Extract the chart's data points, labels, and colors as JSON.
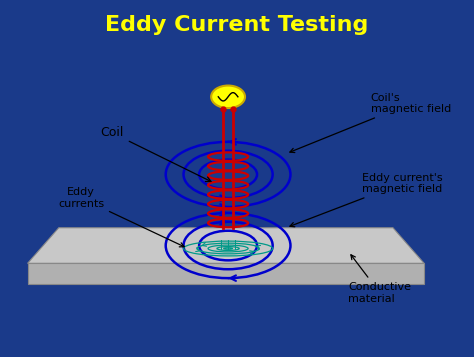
{
  "title": "Eddy Current Testing",
  "title_color": "#FFFF00",
  "title_fontsize": 16,
  "bg_outer": "#1a3a8a",
  "bg_inner": "#f5f5f5",
  "coil_color": "#cc0000",
  "field_color": "#0000cc",
  "eddy_color": "#009988",
  "platform_face": "#b0b0b0",
  "platform_edge": "#888888",
  "platform_top_face": "#c8c8c8",
  "source_color": "#ffff00",
  "source_outline": "#ccaa00",
  "labels": {
    "coil": "Coil",
    "coils_field": "Coil's\nmagnetic field",
    "eddy_field": "Eddy current's\nmagnetic field",
    "eddy_currents": "Eddy\ncurrents",
    "conductive": "Conductive\nmaterial"
  },
  "label_fontsize": 8,
  "label_color": "#000000"
}
